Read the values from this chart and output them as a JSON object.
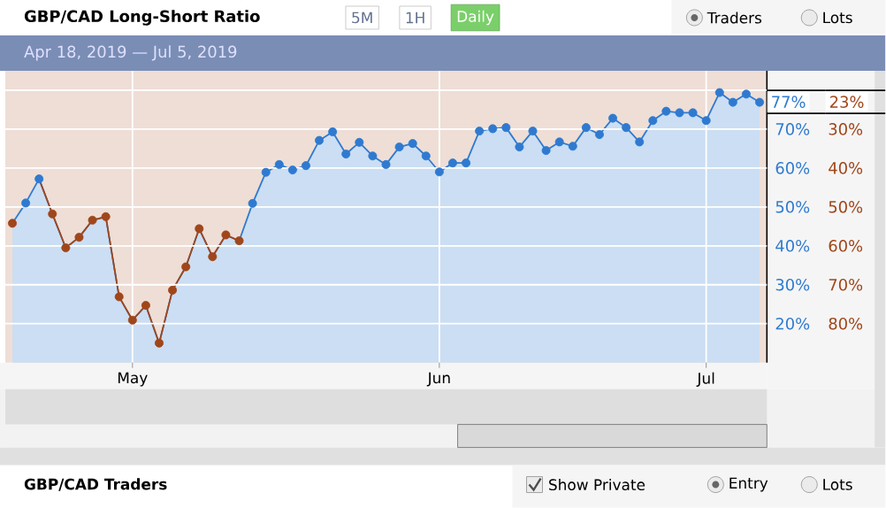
{
  "chart_data": {
    "type": "area",
    "title": "GBP/CAD Long-Short Ratio",
    "subtitle": "Apr 18, 2019 — Jul 5, 2019",
    "categories": [
      null,
      null,
      null,
      null,
      null,
      null,
      null,
      null,
      null,
      "May",
      null,
      null,
      null,
      null,
      null,
      null,
      null,
      null,
      null,
      null,
      null,
      null,
      null,
      null,
      null,
      null,
      null,
      null,
      null,
      null,
      null,
      null,
      "Jun",
      null,
      null,
      null,
      null,
      null,
      null,
      null,
      null,
      null,
      null,
      null,
      null,
      null,
      null,
      null,
      null,
      null,
      null,
      null,
      "Jul",
      null,
      null,
      null,
      null
    ],
    "series": [
      {
        "color": "#2f7ad0",
        "values": [
          45.8,
          51,
          57.2,
          48.2,
          39.5,
          42.2,
          46.6,
          47.5,
          26.9,
          20.9,
          24.7,
          15.0,
          28.6,
          34.6,
          44.4,
          37.2,
          42.8,
          41.3,
          50.9,
          58.9,
          60.9,
          59.5,
          60.6,
          67.1,
          69.3,
          63.6,
          66.6,
          63.1,
          60.9,
          65.4,
          66.3,
          63.1,
          59.0,
          61.3,
          61.3,
          69.5,
          70.1,
          70.4,
          65.4,
          69.5,
          64.5,
          66.7,
          65.6,
          70.4,
          68.6,
          72.8,
          70.4,
          66.7,
          72.2,
          74.6,
          74.2,
          74.2,
          72.2,
          79.4,
          76.9,
          79.0,
          76.9
        ],
        "colors": [
          "#a0461a",
          "#2f7ad0",
          "#2f7ad0",
          "#a0461a",
          "#a0461a",
          "#a0461a",
          "#a0461a",
          "#a0461a",
          "#a0461a",
          "#a0461a",
          "#a0461a",
          "#a0461a",
          "#a0461a",
          "#a0461a",
          "#a0461a",
          "#a0461a",
          "#a0461a",
          "#a0461a",
          "#2f7ad0",
          "#2f7ad0",
          "#2f7ad0",
          "#2f7ad0",
          "#2f7ad0",
          "#2f7ad0",
          "#2f7ad0",
          "#2f7ad0",
          "#2f7ad0",
          "#2f7ad0",
          "#2f7ad0",
          "#2f7ad0",
          "#2f7ad0",
          "#2f7ad0",
          "#2f7ad0",
          "#2f7ad0",
          "#2f7ad0",
          "#2f7ad0",
          "#2f7ad0",
          "#2f7ad0",
          "#2f7ad0",
          "#2f7ad0",
          "#2f7ad0",
          "#2f7ad0",
          "#2f7ad0",
          "#2f7ad0",
          "#2f7ad0",
          "#2f7ad0",
          "#2f7ad0",
          "#2f7ad0",
          "#2f7ad0",
          "#2f7ad0",
          "#2f7ad0",
          "#2f7ad0",
          "#2f7ad0",
          "#2f7ad0",
          "#2f7ad0",
          "#2f7ad0",
          "#2f7ad0"
        ]
      }
    ],
    "ylim": [
      10,
      85
    ],
    "yticks": [
      {
        "value": 20,
        "label": "20%"
      },
      {
        "value": 30,
        "label": "30%"
      },
      {
        "value": 40,
        "label": "40%"
      },
      {
        "value": 50,
        "label": "50%"
      },
      {
        "value": 60,
        "label": "60%"
      },
      {
        "value": 70,
        "label": "70%"
      },
      {
        "value": 80,
        "label": null
      }
    ],
    "y2lim": [
      90,
      15
    ],
    "y2ticks": [
      {
        "value": 80,
        "label": "80%"
      },
      {
        "value": 70,
        "label": "70%"
      },
      {
        "value": 60,
        "label": "60%"
      },
      {
        "value": 50,
        "label": "50%"
      },
      {
        "value": 40,
        "label": "40%"
      },
      {
        "value": 30,
        "label": "30%"
      },
      {
        "value": 20,
        "label": null
      }
    ],
    "grid": true,
    "marker": "circle",
    "line_style": "solid",
    "annotations": [
      "5M",
      "1H",
      "Daily",
      "Traders",
      "Lots",
      "GBP/CAD Traders",
      "Show Private",
      "Entry",
      "Lots",
      {
        "text": "77%",
        "y": 77
      },
      "23%"
    ]
  }
}
